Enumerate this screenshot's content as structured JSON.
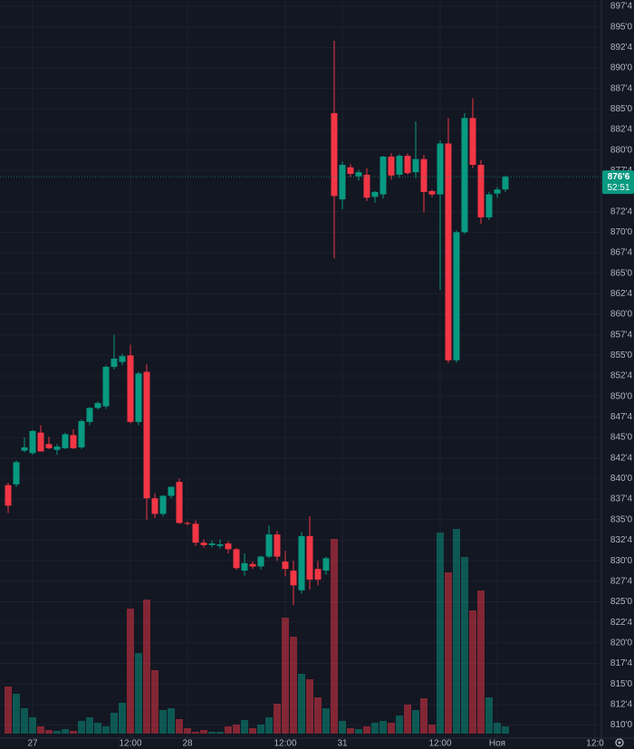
{
  "chart_data": {
    "type": "candlestick",
    "categories": [
      null,
      null,
      null,
      "27",
      null,
      null,
      null,
      null,
      null,
      null,
      null,
      null,
      null,
      null,
      null,
      "12:00",
      null,
      null,
      null,
      null,
      null,
      null,
      "28",
      null,
      null,
      null,
      null,
      null,
      null,
      null,
      null,
      null,
      null,
      null,
      "12:00",
      null,
      null,
      null,
      null,
      null,
      null,
      "31",
      null,
      null,
      null,
      null,
      null,
      null,
      null,
      null,
      null,
      null,
      null,
      "12:00",
      null,
      null,
      null,
      null,
      null,
      null,
      "Ноя",
      null,
      null,
      null,
      null,
      null,
      null,
      null,
      null,
      null,
      null,
      null,
      "12:0"
    ],
    "open": [
      839.2,
      839.3,
      843.4,
      843.1,
      845.6,
      844.2,
      843.5,
      843.7,
      845.3,
      843.8,
      846.9,
      848.6,
      848.8,
      853.6,
      854.2,
      855.0,
      846.9,
      853.0,
      837.6,
      835.7,
      837.9,
      839.6,
      834.6,
      834.5,
      832.2,
      831.9,
      831.8,
      832.1,
      831.4,
      828.8,
      829.6,
      829.3,
      830.5,
      833.2,
      829.9,
      828.8,
      826.4,
      833.0,
      829.0,
      828.8,
      884.5,
      874.0,
      877.9,
      876.8,
      877.0,
      874.3,
      874.6,
      879.2,
      877.0,
      879.3,
      877.3,
      878.9,
      875.0,
      874.6,
      880.8,
      854.4,
      870.0,
      883.9,
      878.2,
      871.8,
      874.7,
      875.2,
      null,
      null,
      null,
      null,
      null,
      null,
      null,
      null,
      null,
      null,
      null
    ],
    "high": [
      839.5,
      842.2,
      845.0,
      845.9,
      846.5,
      845.1,
      844.2,
      845.6,
      846.0,
      847.2,
      848.7,
      849.4,
      853.8,
      857.5,
      855.2,
      856.3,
      853.0,
      853.9,
      838.2,
      838.0,
      839.0,
      840.0,
      834.8,
      834.9,
      832.6,
      832.5,
      832.6,
      832.4,
      831.6,
      830.9,
      829.9,
      830.6,
      834.3,
      833.6,
      831.2,
      830.0,
      833.5,
      835.4,
      830.0,
      830.5,
      893.3,
      878.6,
      878.3,
      877.6,
      877.8,
      875.0,
      879.3,
      879.6,
      879.5,
      879.6,
      883.5,
      879.4,
      875.2,
      881.2,
      883.9,
      870.2,
      884.5,
      886.3,
      878.8,
      874.9,
      875.5,
      876.9,
      null,
      null,
      null,
      null,
      null,
      null,
      null,
      null,
      null,
      null,
      null
    ],
    "low": [
      835.8,
      839.0,
      843.2,
      842.9,
      843.3,
      843.6,
      842.9,
      843.6,
      843.6,
      843.6,
      846.5,
      848.4,
      848.5,
      853.3,
      853.8,
      846.7,
      846.5,
      835.0,
      835.2,
      835.4,
      837.6,
      834.5,
      834.3,
      831.8,
      831.6,
      831.6,
      831.5,
      830.9,
      828.9,
      828.2,
      829.0,
      828.9,
      830.3,
      830.0,
      828.1,
      824.6,
      826.0,
      826.5,
      827.0,
      828.3,
      866.8,
      872.8,
      876.7,
      876.3,
      873.8,
      873.6,
      874.1,
      876.4,
      876.6,
      877.0,
      876.6,
      872.4,
      874.3,
      863.0,
      854.1,
      854.1,
      869.8,
      877.8,
      871.0,
      871.5,
      874.2,
      874.9,
      null,
      null,
      null,
      null,
      null,
      null,
      null,
      null,
      null,
      null,
      null
    ],
    "close": [
      836.7,
      842.0,
      843.8,
      845.8,
      843.3,
      843.7,
      843.9,
      845.4,
      843.7,
      847.0,
      848.6,
      849.2,
      853.6,
      854.6,
      854.9,
      846.9,
      852.8,
      837.6,
      835.7,
      837.9,
      839.0,
      834.6,
      834.5,
      832.2,
      831.9,
      832.1,
      832.0,
      831.4,
      829.1,
      829.7,
      829.3,
      830.5,
      833.2,
      830.5,
      829.0,
      827.0,
      833.0,
      827.7,
      827.7,
      830.3,
      874.4,
      878.2,
      877.1,
      877.3,
      874.2,
      874.9,
      879.2,
      876.9,
      879.3,
      877.2,
      878.9,
      874.9,
      874.6,
      880.8,
      854.4,
      870.0,
      883.9,
      878.2,
      871.8,
      874.6,
      875.2,
      876.75,
      null,
      null,
      null,
      null,
      null,
      null,
      null,
      null,
      null,
      null,
      null
    ],
    "volume": [
      52,
      44,
      28,
      18,
      8,
      4,
      3,
      5,
      3,
      14,
      18,
      12,
      8,
      23,
      34,
      138,
      89,
      148,
      70,
      26,
      28,
      16,
      6,
      2,
      4,
      2,
      2,
      8,
      10,
      15,
      6,
      10,
      18,
      33,
      128,
      107,
      66,
      60,
      40,
      28,
      215,
      14,
      6,
      5,
      8,
      12,
      14,
      12,
      20,
      32,
      26,
      39,
      10,
      222,
      178,
      226,
      195,
      136,
      158,
      40,
      12,
      8,
      null,
      null,
      null,
      null,
      null,
      null,
      null,
      null,
      null,
      null,
      null
    ],
    "up_color": "#089981",
    "down_color": "#f23645",
    "ylim": [
      808.4,
      898.27
    ],
    "y2lim": [
      0,
      810
    ],
    "yticks": [
      {
        "value": 897.5,
        "label": "897'4"
      },
      {
        "value": 895,
        "label": "895'0"
      },
      {
        "value": 892.5,
        "label": "892'4"
      },
      {
        "value": 890,
        "label": "890'0"
      },
      {
        "value": 887.5,
        "label": "887'4"
      },
      {
        "value": 885,
        "label": "885'0"
      },
      {
        "value": 882.5,
        "label": "882'4"
      },
      {
        "value": 880,
        "label": "880'0"
      },
      {
        "value": 877.5,
        "label": "877'4"
      },
      {
        "value": 872.5,
        "label": "872'4"
      },
      {
        "value": 870,
        "label": "870'0"
      },
      {
        "value": 867.5,
        "label": "867'4"
      },
      {
        "value": 865,
        "label": "865'0"
      },
      {
        "value": 862.5,
        "label": "862'4"
      },
      {
        "value": 860,
        "label": "860'0"
      },
      {
        "value": 857.5,
        "label": "857'4"
      },
      {
        "value": 855,
        "label": "855'0"
      },
      {
        "value": 852.5,
        "label": "852'4"
      },
      {
        "value": 850,
        "label": "850'0"
      },
      {
        "value": 847.5,
        "label": "847'4"
      },
      {
        "value": 845,
        "label": "845'0"
      },
      {
        "value": 842.5,
        "label": "842'4"
      },
      {
        "value": 840,
        "label": "840'0"
      },
      {
        "value": 837.5,
        "label": "837'4"
      },
      {
        "value": 835,
        "label": "835'0"
      },
      {
        "value": 832.5,
        "label": "832'4"
      },
      {
        "value": 830,
        "label": "830'0"
      },
      {
        "value": 827.5,
        "label": "827'4"
      },
      {
        "value": 825,
        "label": "825'0"
      },
      {
        "value": 822.5,
        "label": "822'4"
      },
      {
        "value": 820,
        "label": "820'0"
      },
      {
        "value": 817.5,
        "label": "817'4"
      },
      {
        "value": 815,
        "label": "815'0"
      },
      {
        "value": 812.5,
        "label": "812'4"
      },
      {
        "value": 810,
        "label": "810'0"
      }
    ],
    "grid": true,
    "last_price": {
      "value": 876.75,
      "label": "876'6"
    },
    "countdown": "52:51"
  }
}
